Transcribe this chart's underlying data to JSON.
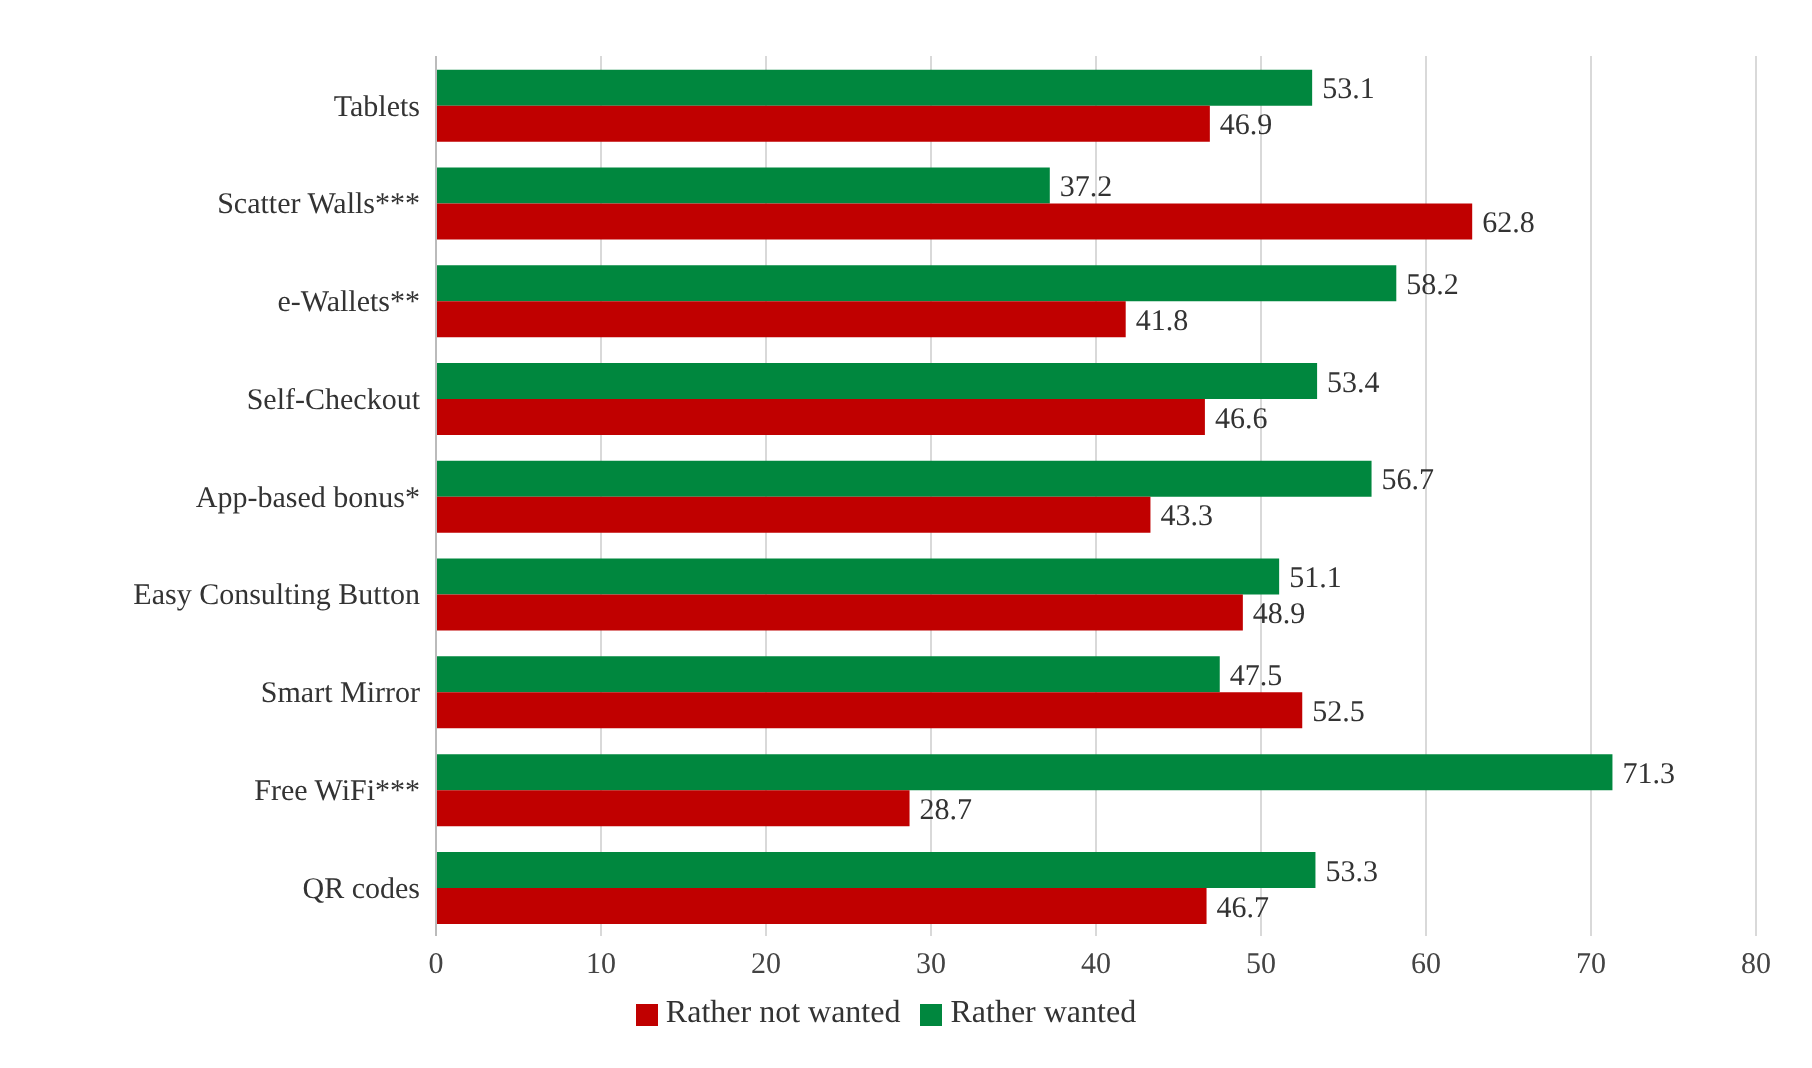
{
  "chart_data": {
    "type": "bar",
    "orientation": "horizontal",
    "categories": [
      "Tablets",
      "Scatter Walls***",
      "e-Wallets**",
      "Self-Checkout",
      "App-based bonus*",
      "Easy Consulting Button",
      "Smart Mirror",
      "Free WiFi***",
      "QR codes"
    ],
    "series": [
      {
        "name": "Rather wanted",
        "color": "#00873e",
        "values": [
          53.1,
          37.2,
          58.2,
          53.4,
          56.7,
          51.1,
          47.5,
          71.3,
          53.3
        ]
      },
      {
        "name": "Rather not wanted",
        "color": "#c00000",
        "values": [
          46.9,
          62.8,
          41.8,
          46.6,
          43.3,
          48.9,
          52.5,
          28.7,
          46.7
        ]
      }
    ],
    "xlim": [
      0,
      80
    ],
    "xticks": [
      0,
      10,
      20,
      30,
      40,
      50,
      60,
      70,
      80
    ],
    "grid": "x",
    "legend": "bottom",
    "data_labels": true
  }
}
